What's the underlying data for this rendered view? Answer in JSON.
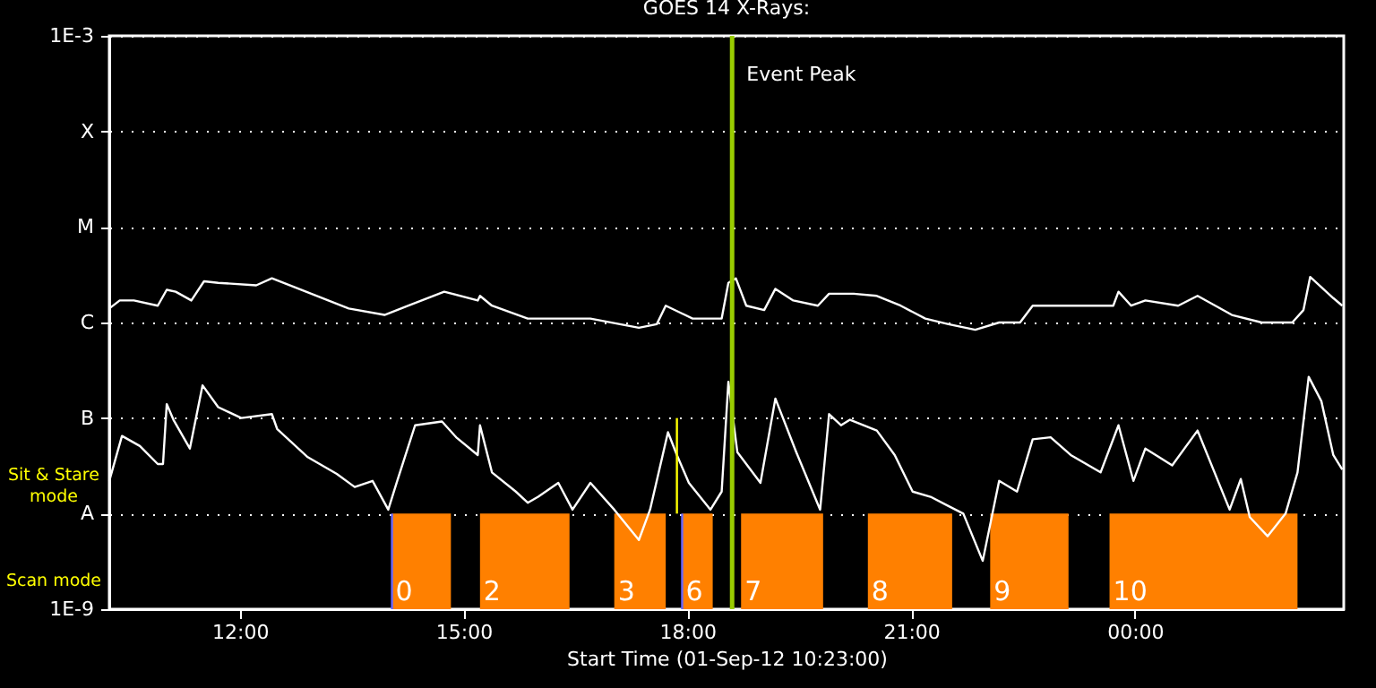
{
  "chart_data": {
    "type": "line",
    "title": "GOES 14 X-Rays:",
    "xlabel": "Start Time (01-Sep-12 10:23:00)",
    "log": "y",
    "grid": "y",
    "xlim": [
      10.25,
      26.8
    ],
    "xticks": [
      {
        "value": 12,
        "label": "12:00"
      },
      {
        "value": 15,
        "label": "15:00"
      },
      {
        "value": 18,
        "label": "18:00"
      },
      {
        "value": 21,
        "label": "21:00"
      },
      {
        "value": 24,
        "label": "00:00"
      }
    ],
    "ylim": [
      1e-09,
      0.001
    ],
    "yticks": [
      {
        "value": 1e-09,
        "label": "1E-9"
      },
      {
        "value": 1e-08,
        "label": "A"
      },
      {
        "value": 1e-07,
        "label": "B"
      },
      {
        "value": 1e-06,
        "label": "C"
      },
      {
        "value": 1e-05,
        "label": "M"
      },
      {
        "value": 0.0001,
        "label": "X"
      },
      {
        "value": 0.001,
        "label": "1E-3"
      }
    ],
    "series": [
      {
        "color": "#ffffff",
        "x": [
          10.25,
          10.39,
          10.58,
          10.9,
          11.02,
          11.14,
          11.35,
          11.52,
          11.71,
          12.22,
          12.43,
          12.82,
          13.46,
          13.94,
          14.26,
          14.74,
          15.19,
          15.22,
          15.38,
          15.86,
          16.22,
          16.7,
          17.35,
          17.59,
          17.71,
          18.07,
          18.46,
          18.55,
          18.65,
          18.79,
          19.03,
          19.18,
          19.42,
          19.75,
          19.9,
          20.23,
          20.54,
          20.86,
          21.19,
          21.5,
          21.86,
          22.18,
          22.46,
          22.63,
          22.99,
          23.23,
          23.71,
          23.78,
          23.95,
          24.14,
          24.58,
          24.84,
          25.3,
          25.7,
          26.11,
          26.26,
          26.35,
          26.66,
          26.78
        ],
        "values": [
          1.4e-06,
          1.7e-06,
          1.7e-06,
          1.5e-06,
          2.2e-06,
          2.1e-06,
          1.7e-06,
          2.7e-06,
          2.6e-06,
          2.45e-06,
          2.9e-06,
          2.2e-06,
          1.4e-06,
          1.2e-06,
          1.5e-06,
          2.1e-06,
          1.7e-06,
          1.9e-06,
          1.5e-06,
          1.1e-06,
          1.1e-06,
          1.1e-06,
          8.8e-07,
          9.6e-07,
          1.5e-06,
          1.1e-06,
          1.1e-06,
          2.6e-06,
          2.9e-06,
          1.5e-06,
          1.35e-06,
          2.25e-06,
          1.7e-06,
          1.5e-06,
          2e-06,
          2e-06,
          1.9e-06,
          1.5e-06,
          1.1e-06,
          9.6e-07,
          8.4e-07,
          1e-06,
          1e-06,
          1.5e-06,
          1.5e-06,
          1.5e-06,
          1.5e-06,
          2.1e-06,
          1.5e-06,
          1.7e-06,
          1.5e-06,
          1.9e-06,
          1.2e-06,
          1e-06,
          1e-06,
          1.35e-06,
          3e-06,
          1.8e-06,
          1.5e-06
        ]
      },
      {
        "color": "#ffffff",
        "x": [
          10.25,
          10.42,
          10.66,
          10.9,
          10.97,
          11.02,
          11.11,
          11.33,
          11.5,
          11.71,
          12.02,
          12.43,
          12.5,
          12.91,
          13.3,
          13.54,
          13.78,
          13.99,
          14.11,
          14.35,
          14.71,
          14.9,
          15.19,
          15.22,
          15.38,
          15.7,
          15.86,
          16.0,
          16.27,
          16.46,
          16.7,
          17.02,
          17.35,
          17.5,
          17.74,
          17.86,
          18.02,
          18.31,
          18.46,
          18.55,
          18.67,
          18.98,
          19.18,
          19.46,
          19.78,
          19.9,
          20.06,
          20.18,
          20.54,
          20.78,
          21.02,
          21.26,
          21.5,
          21.7,
          21.96,
          22.18,
          22.42,
          22.63,
          22.87,
          23.14,
          23.54,
          23.78,
          23.98,
          24.14,
          24.5,
          24.84,
          25.27,
          25.42,
          25.54,
          25.78,
          26.02,
          26.18,
          26.33,
          26.5,
          26.66,
          26.78
        ],
        "values": [
          2.2e-08,
          6.5e-08,
          5.1e-08,
          3.3e-08,
          3.3e-08,
          1.4e-07,
          9.6e-08,
          4.8e-08,
          2.2e-07,
          1.3e-07,
          1e-07,
          1.1e-07,
          7.7e-08,
          3.9e-08,
          2.6e-08,
          1.9e-08,
          2.2e-08,
          1.1e-08,
          2.2e-08,
          8.4e-08,
          9.2e-08,
          6.3e-08,
          4.1e-08,
          8.4e-08,
          2.7e-08,
          1.7e-08,
          1.3e-08,
          1.5e-08,
          2.1e-08,
          1.1e-08,
          2.1e-08,
          1.1e-08,
          5.3e-09,
          1.1e-08,
          7.1e-08,
          4.1e-08,
          2.1e-08,
          1.1e-08,
          1.7e-08,
          2.4e-07,
          4.4e-08,
          2.1e-08,
          1.6e-07,
          4.4e-08,
          1.1e-08,
          1.1e-07,
          8.4e-08,
          9.6e-08,
          7.4e-08,
          4.1e-08,
          1.7e-08,
          1.5e-08,
          1.2e-08,
          1e-08,
          3.2e-09,
          2.2e-08,
          1.7e-08,
          6e-08,
          6.3e-08,
          4.1e-08,
          2.7e-08,
          8.4e-08,
          2.2e-08,
          4.8e-08,
          3.2e-08,
          7.4e-08,
          1.1e-08,
          2.3e-08,
          9.2e-09,
          5.8e-09,
          1e-08,
          2.7e-08,
          2.7e-07,
          1.5e-07,
          4.1e-08,
          2.9e-08
        ]
      },
      {
        "color": "#ffff00",
        "x": [
          17.86,
          17.86
        ],
        "values": [
          1e-07,
          1e-08
        ]
      },
      {
        "color": "#6666ff",
        "x": [
          14.04,
          14.04
        ],
        "values": [
          1e-08,
          1e-09
        ]
      },
      {
        "color": "#6666ff",
        "x": [
          17.93,
          17.93
        ],
        "values": [
          1e-08,
          1e-09
        ]
      }
    ],
    "ref_lines": [
      {
        "axis": "x",
        "value": 18.6,
        "label": "Event Peak",
        "color": "#99cc00"
      }
    ],
    "bands": [
      {
        "axis": "x",
        "from": 14.04,
        "to": 14.83,
        "label": "0",
        "color": "#ff8000"
      },
      {
        "axis": "x",
        "from": 15.22,
        "to": 16.42,
        "label": "2",
        "color": "#ff8000"
      },
      {
        "axis": "x",
        "from": 17.02,
        "to": 17.71,
        "label": "3",
        "color": "#ff8000"
      },
      {
        "axis": "x",
        "from": 17.93,
        "to": 18.34,
        "label": "6",
        "color": "#ff8000"
      },
      {
        "axis": "x",
        "from": 18.72,
        "to": 19.82,
        "label": "7",
        "color": "#ff8000"
      },
      {
        "axis": "x",
        "from": 20.42,
        "to": 21.55,
        "label": "8",
        "color": "#ff8000"
      },
      {
        "axis": "x",
        "from": 22.06,
        "to": 23.11,
        "label": "9",
        "color": "#ff8000"
      },
      {
        "axis": "x",
        "from": 23.66,
        "to": 26.18,
        "label": "10",
        "color": "#ff8000"
      }
    ],
    "annotations": [
      "Sit & Stare mode",
      "Scan mode"
    ]
  }
}
